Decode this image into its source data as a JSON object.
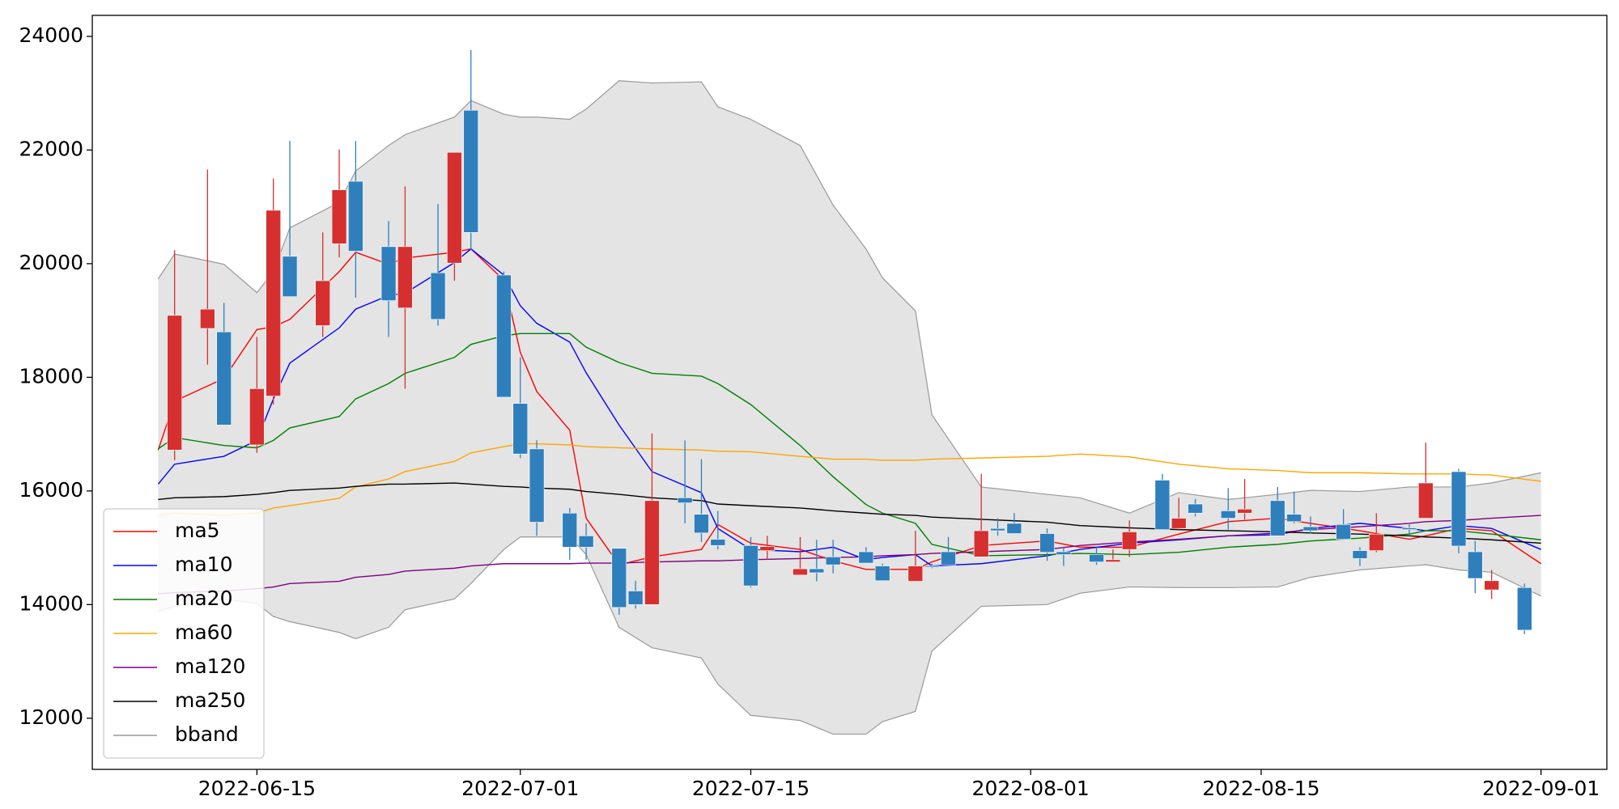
{
  "chart_data": {
    "type": "candlestick",
    "x": [
      "2022-06-10",
      "2022-06-12",
      "2022-06-13",
      "2022-06-15",
      "2022-06-16",
      "2022-06-17",
      "2022-06-19",
      "2022-06-20",
      "2022-06-21",
      "2022-06-23",
      "2022-06-24",
      "2022-06-26",
      "2022-06-27",
      "2022-06-28",
      "2022-06-30",
      "2022-07-01",
      "2022-07-02",
      "2022-07-04",
      "2022-07-05",
      "2022-07-07",
      "2022-07-08",
      "2022-07-09",
      "2022-07-11",
      "2022-07-12",
      "2022-07-13",
      "2022-07-15",
      "2022-07-16",
      "2022-07-18",
      "2022-07-19",
      "2022-07-20",
      "2022-07-22",
      "2022-07-23",
      "2022-07-25",
      "2022-07-26",
      "2022-07-27",
      "2022-07-29",
      "2022-07-30",
      "2022-07-31",
      "2022-08-02",
      "2022-08-03",
      "2022-08-05",
      "2022-08-06",
      "2022-08-07",
      "2022-08-09",
      "2022-08-10",
      "2022-08-11",
      "2022-08-13",
      "2022-08-14",
      "2022-08-16",
      "2022-08-17",
      "2022-08-18",
      "2022-08-20",
      "2022-08-21",
      "2022-08-22",
      "2022-08-24",
      "2022-08-25",
      "2022-08-27",
      "2022-08-28",
      "2022-08-29",
      "2022-08-31"
    ],
    "open": [
      16720,
      18860,
      18800,
      16810,
      17670,
      20130,
      18910,
      20350,
      21450,
      20300,
      19220,
      19840,
      20010,
      22700,
      19800,
      17540,
      16740,
      15610,
      15210,
      14990,
      14240,
      14000,
      15880,
      15590,
      15150,
      15040,
      14950,
      14520,
      14630,
      14840,
      14930,
      14680,
      14410,
      14680,
      14930,
      14840,
      15340,
      15430,
      15250,
      14930,
      14880,
      14750,
      14970,
      16190,
      15340,
      15770,
      15650,
      15610,
      15830,
      15590,
      15370,
      15410,
      14950,
      14950,
      15350,
      15520,
      16340,
      14930,
      14260,
      14300
    ],
    "high": [
      20240,
      21660,
      19310,
      18710,
      21500,
      22160,
      20550,
      22010,
      22160,
      20750,
      21360,
      21050,
      21960,
      23760,
      19860,
      18350,
      16890,
      15700,
      15430,
      14990,
      14420,
      17010,
      16890,
      16560,
      15650,
      15190,
      15210,
      15190,
      15140,
      15140,
      15010,
      14720,
      15300,
      14720,
      15190,
      16300,
      15520,
      15610,
      15340,
      15010,
      15010,
      14970,
      15480,
      16300,
      15880,
      15860,
      16050,
      16210,
      16070,
      15990,
      15550,
      15680,
      15010,
      15610,
      15410,
      16850,
      16390,
      15120,
      14610,
      14370
    ],
    "low": [
      16540,
      18220,
      17160,
      16670,
      17520,
      19420,
      18710,
      20110,
      19400,
      18710,
      17800,
      18910,
      19700,
      20240,
      17650,
      16580,
      15210,
      14790,
      14790,
      13820,
      13930,
      14000,
      15430,
      15100,
      14970,
      14300,
      14790,
      14520,
      14410,
      14550,
      14730,
      14420,
      14410,
      14640,
      14700,
      14840,
      15210,
      15250,
      14770,
      14680,
      14700,
      14750,
      14840,
      15320,
      15300,
      15550,
      15320,
      15500,
      15210,
      15430,
      15250,
      15140,
      14680,
      14920,
      15250,
      15520,
      14900,
      14200,
      14100,
      13480
    ],
    "close": [
      19090,
      19200,
      17160,
      17800,
      20940,
      19420,
      19700,
      21300,
      20220,
      19350,
      20300,
      19020,
      21960,
      20550,
      17650,
      16650,
      15450,
      15010,
      15010,
      13950,
      14000,
      15830,
      15790,
      15260,
      15040,
      14330,
      15020,
      14630,
      14560,
      14700,
      14730,
      14420,
      14680,
      14660,
      14700,
      15300,
      15300,
      15250,
      14920,
      14880,
      14750,
      14790,
      15280,
      15320,
      15520,
      15610,
      15520,
      15680,
      15210,
      15460,
      15300,
      15150,
      14810,
      15240,
      15320,
      16140,
      15030,
      14460,
      14420,
      13550
    ],
    "up_color": "#d62f2f",
    "down_color": "#2f7fbd",
    "overlays": {
      "x": [
        "2022-06-09",
        "2022-06-10",
        "2022-06-13",
        "2022-06-15",
        "2022-06-16",
        "2022-06-17",
        "2022-06-20",
        "2022-06-21",
        "2022-06-23",
        "2022-06-24",
        "2022-06-27",
        "2022-06-28",
        "2022-06-30",
        "2022-07-01",
        "2022-07-02",
        "2022-07-04",
        "2022-07-05",
        "2022-07-07",
        "2022-07-09",
        "2022-07-12",
        "2022-07-13",
        "2022-07-15",
        "2022-07-18",
        "2022-07-20",
        "2022-07-22",
        "2022-07-23",
        "2022-07-25",
        "2022-07-26",
        "2022-07-29",
        "2022-08-02",
        "2022-08-04",
        "2022-08-07",
        "2022-08-10",
        "2022-08-13",
        "2022-08-16",
        "2022-08-18",
        "2022-08-21",
        "2022-08-24",
        "2022-08-25",
        "2022-08-27",
        "2022-08-29",
        "2022-09-01"
      ],
      "series": [
        {
          "name": "ma5",
          "color": "#ff0000",
          "values": [
            16720,
            17580,
            17980,
            18840,
            18890,
            19020,
            19860,
            20200,
            19990,
            20100,
            20200,
            20260,
            19710,
            18440,
            17750,
            17070,
            15520,
            14700,
            14840,
            14970,
            15410,
            15080,
            14970,
            14770,
            14620,
            14620,
            14620,
            14750,
            15040,
            15120,
            15010,
            15010,
            15240,
            15460,
            15520,
            15430,
            15300,
            15150,
            15210,
            15340,
            15300,
            14720
          ]
        },
        {
          "name": "ma10",
          "color": "#0000ff",
          "values": [
            16120,
            16470,
            16610,
            16890,
            17620,
            18250,
            18870,
            19200,
            19440,
            19480,
            20020,
            20260,
            19800,
            19260,
            18950,
            18620,
            18080,
            17160,
            16340,
            15970,
            15340,
            14970,
            14930,
            15010,
            14790,
            14830,
            14880,
            14680,
            14720,
            14860,
            14970,
            15080,
            15140,
            15210,
            15230,
            15340,
            15430,
            15340,
            15300,
            15390,
            15340,
            14970
          ]
        },
        {
          "name": "ma20",
          "color": "#008000",
          "values": [
            16740,
            16940,
            16800,
            16760,
            16890,
            17110,
            17310,
            17620,
            17890,
            18070,
            18350,
            18580,
            18730,
            18770,
            18770,
            18770,
            18530,
            18260,
            18070,
            18020,
            17890,
            17520,
            16800,
            16250,
            15760,
            15610,
            15430,
            15060,
            14860,
            14880,
            14900,
            14880,
            14920,
            15010,
            15060,
            15120,
            15170,
            15240,
            15300,
            15300,
            15240,
            15140
          ]
        },
        {
          "name": "ma60",
          "color": "#ffa500",
          "values": [
            15570,
            15610,
            15570,
            15610,
            15700,
            15740,
            15870,
            16070,
            16210,
            16340,
            16520,
            16670,
            16780,
            16830,
            16830,
            16810,
            16780,
            16760,
            16740,
            16720,
            16700,
            16690,
            16610,
            16560,
            16560,
            16540,
            16540,
            16560,
            16580,
            16610,
            16650,
            16600,
            16470,
            16390,
            16360,
            16320,
            16320,
            16300,
            16300,
            16300,
            16280,
            16170
          ]
        },
        {
          "name": "ma120",
          "color": "#800080",
          "values": [
            14190,
            14210,
            14240,
            14280,
            14310,
            14370,
            14410,
            14480,
            14530,
            14590,
            14640,
            14680,
            14720,
            14720,
            14720,
            14720,
            14730,
            14730,
            14750,
            14770,
            14770,
            14790,
            14810,
            14830,
            14840,
            14860,
            14880,
            14900,
            14930,
            14970,
            15040,
            15100,
            15150,
            15210,
            15260,
            15320,
            15370,
            15430,
            15460,
            15480,
            15520,
            15570
          ]
        },
        {
          "name": "ma250",
          "color": "#000000",
          "values": [
            15850,
            15880,
            15900,
            15940,
            15970,
            16010,
            16050,
            16080,
            16120,
            16120,
            16140,
            16120,
            16080,
            16070,
            16050,
            16030,
            15990,
            15940,
            15880,
            15830,
            15770,
            15740,
            15700,
            15650,
            15610,
            15590,
            15570,
            15540,
            15500,
            15450,
            15390,
            15350,
            15320,
            15300,
            15280,
            15260,
            15240,
            15210,
            15190,
            15170,
            15140,
            15080
          ]
        }
      ],
      "band": {
        "name": "bband",
        "color": "#999999",
        "fill": "#e4e4e4",
        "upper": [
          19730,
          20170,
          19990,
          19490,
          19860,
          20630,
          21080,
          21630,
          22080,
          22270,
          22580,
          22870,
          22630,
          22580,
          22580,
          22540,
          22720,
          23220,
          23180,
          23200,
          22760,
          22540,
          22080,
          21030,
          20260,
          19750,
          19170,
          17340,
          16070,
          15940,
          15880,
          15610,
          15970,
          15850,
          15940,
          16010,
          15990,
          16070,
          16070,
          16070,
          16140,
          16320
        ],
        "lower": [
          13880,
          13970,
          14100,
          14020,
          13790,
          13700,
          13510,
          13400,
          13600,
          13910,
          14100,
          14370,
          14970,
          15190,
          15190,
          15190,
          14880,
          13600,
          13240,
          13060,
          12600,
          12050,
          11960,
          11720,
          11720,
          11940,
          12120,
          13180,
          13970,
          14000,
          14200,
          14310,
          14300,
          14300,
          14310,
          14480,
          14610,
          14680,
          14700,
          14610,
          14570,
          14150
        ]
      }
    },
    "xlim": [
      "2022-06-05",
      "2022-09-05"
    ],
    "xticks": [
      "2022-06-15",
      "2022-07-01",
      "2022-07-15",
      "2022-08-01",
      "2022-08-15",
      "2022-09-01"
    ],
    "ylim": [
      11100,
      24370
    ],
    "yticks": [
      12000,
      14000,
      16000,
      18000,
      20000,
      22000,
      24000
    ],
    "legend": "lower left"
  }
}
